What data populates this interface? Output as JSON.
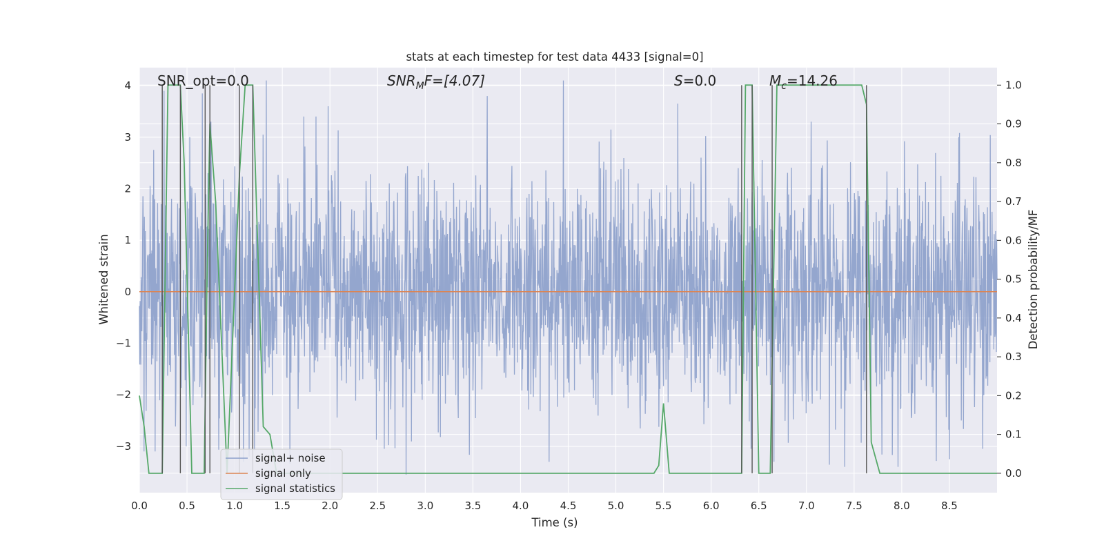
{
  "chart_data": {
    "type": "line",
    "title": "stats at each timestep for test data 4433 [signal=0]",
    "xlabel": "Time (s)",
    "ylabel_left": "Whitened strain",
    "ylabel_right": "Detection probability/MF",
    "xlim": [
      0.0,
      9.0
    ],
    "ylim_left": [
      -3.9,
      4.35
    ],
    "ylim_right": [
      -0.05,
      1.045
    ],
    "x_ticks": [
      0.0,
      0.5,
      1.0,
      1.5,
      2.0,
      2.5,
      3.0,
      3.5,
      4.0,
      4.5,
      5.0,
      5.5,
      6.0,
      6.5,
      7.0,
      7.5,
      8.0,
      8.5
    ],
    "x_tick_labels": [
      "0.0",
      "0.5",
      "1.0",
      "1.5",
      "2.0",
      "2.5",
      "3.0",
      "3.5",
      "4.0",
      "4.5",
      "5.0",
      "5.5",
      "6.0",
      "6.5",
      "7.0",
      "7.5",
      "8.0",
      "8.5"
    ],
    "y_left_ticks": [
      4,
      3,
      2,
      1,
      0,
      -1,
      -2,
      -3
    ],
    "y_left_tick_labels": [
      "4",
      "3",
      "2",
      "1",
      "0",
      "−1",
      "−2",
      "−3"
    ],
    "y_right_ticks": [
      1.0,
      0.9,
      0.8,
      0.7,
      0.6,
      0.5,
      0.4,
      0.3,
      0.2,
      0.1,
      0.0
    ],
    "y_right_tick_labels": [
      "1.0",
      "0.9",
      "0.8",
      "0.7",
      "0.6",
      "0.5",
      "0.4",
      "0.3",
      "0.2",
      "0.1",
      "0.0"
    ],
    "annotations": {
      "snr_opt": "SNR_opt=0.0",
      "snr_mf_base": "SNR",
      "snr_mf_sub": "M",
      "snr_mf_rest": "F=[4.07]",
      "s_label": "S",
      "s_value": "=0.0",
      "mc_label": "M",
      "mc_sub": "c",
      "mc_value": "=14.26"
    },
    "legend": {
      "position": "lower-left",
      "entries": [
        "signal+ noise",
        "signal only",
        "signal statistics"
      ]
    },
    "colors": {
      "noise": "#8c9fcb",
      "signal_only": "#dd8452",
      "statistics": "#55a868",
      "markers": "#555555",
      "plot_bg": "#eaeaf2",
      "grid": "#ffffff"
    },
    "series": [
      {
        "name": "signal+ noise",
        "axis": "left",
        "description": "whitened noise, amplitude roughly within -3.6 to 4.0",
        "noise_sigma": 1.0,
        "notable_peaks": [
          [
            0.26,
            3.9
          ],
          [
            0.53,
            3.0
          ],
          [
            0.66,
            3.85
          ],
          [
            0.75,
            3.3
          ],
          [
            1.33,
            4.1
          ],
          [
            1.98,
            3.6
          ],
          [
            3.65,
            3.8
          ],
          [
            4.45,
            4.1
          ],
          [
            5.65,
            3.65
          ],
          [
            7.05,
            3.3
          ],
          [
            8.6,
            3.0
          ]
        ],
        "notable_troughs": [
          [
            0.05,
            -3.1
          ],
          [
            0.49,
            -3.0
          ],
          [
            1.09,
            -3.3
          ],
          [
            1.15,
            -3.2
          ],
          [
            2.57,
            -3.05
          ],
          [
            2.8,
            -3.55
          ],
          [
            4.3,
            -3.3
          ],
          [
            6.42,
            -3.05
          ],
          [
            6.66,
            -3.3
          ],
          [
            8.5,
            -3.25
          ],
          [
            8.85,
            -3.05
          ]
        ]
      },
      {
        "name": "signal only",
        "axis": "left",
        "x": [
          0.0,
          9.0
        ],
        "y": [
          0.0,
          0.0
        ]
      },
      {
        "name": "signal statistics",
        "axis": "right",
        "x": [
          0.0,
          0.05,
          0.1,
          0.24,
          0.3,
          0.43,
          0.47,
          0.55,
          0.68,
          0.71,
          0.74,
          0.8,
          0.92,
          1.05,
          1.11,
          1.19,
          1.3,
          1.37,
          1.44,
          2.0,
          5.4,
          5.45,
          5.5,
          5.56,
          6.0,
          6.32,
          6.36,
          6.43,
          6.5,
          6.62,
          6.69,
          6.75,
          7.0,
          7.2,
          7.45,
          7.58,
          7.63,
          7.68,
          7.77,
          8.0,
          9.0
        ],
        "y": [
          0.2,
          0.12,
          0.0,
          0.0,
          1.0,
          1.0,
          0.8,
          0.0,
          0.0,
          0.5,
          0.9,
          0.7,
          0.0,
          0.77,
          1.0,
          1.0,
          0.12,
          0.1,
          0.0,
          0.0,
          0.0,
          0.02,
          0.18,
          0.0,
          0.0,
          0.0,
          1.0,
          1.0,
          0.0,
          0.0,
          1.0,
          1.0,
          1.0,
          1.0,
          1.0,
          1.0,
          0.95,
          0.08,
          0.0,
          0.0,
          0.0
        ]
      }
    ],
    "vertical_markers": [
      0.24,
      0.43,
      0.69,
      0.74,
      1.05,
      1.19,
      6.32,
      6.43,
      6.64,
      7.63
    ]
  }
}
